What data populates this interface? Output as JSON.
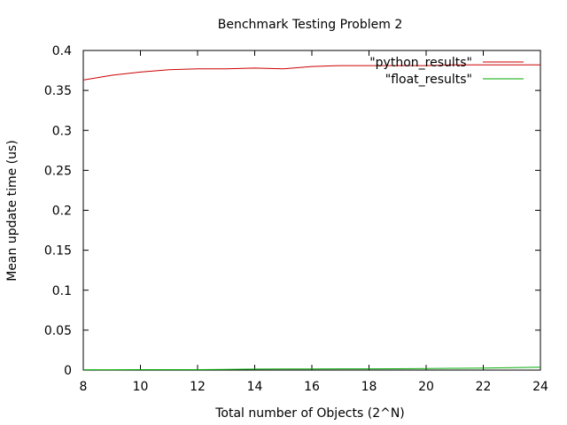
{
  "chart_data": {
    "type": "line",
    "title": "Benchmark Testing Problem 2",
    "xlabel": "Total number of Objects (2^N)",
    "ylabel": "Mean update time  (us)",
    "xlim": [
      8,
      24
    ],
    "ylim": [
      0,
      0.4
    ],
    "xticks": [
      "8",
      "10",
      "12",
      "14",
      "16",
      "18",
      "20",
      "22",
      "24"
    ],
    "yticks": [
      "0",
      "0.05",
      "0.1",
      "0.15",
      "0.2",
      "0.25",
      "0.3",
      "0.35",
      "0.4"
    ],
    "grid": false,
    "legend_position": "top-right",
    "series": [
      {
        "name": "\"python_results\"",
        "color": "#cc0000",
        "x": [
          8,
          9,
          10,
          11,
          12,
          13,
          14,
          15,
          16,
          17,
          18,
          19,
          20,
          21,
          22,
          23,
          24
        ],
        "values": [
          0.363,
          0.369,
          0.373,
          0.376,
          0.377,
          0.377,
          0.378,
          0.377,
          0.38,
          0.381,
          0.381,
          0.381,
          0.381,
          0.382,
          0.382,
          0.382,
          0.382
        ]
      },
      {
        "name": "\"float_results\"",
        "color": "#00aa00",
        "x": [
          8,
          9,
          10,
          11,
          12,
          13,
          14,
          15,
          16,
          17,
          18,
          19,
          20,
          21,
          22,
          23,
          24
        ],
        "values": [
          0.0004,
          0.0004,
          0.0005,
          0.0005,
          0.0006,
          0.0008,
          0.0012,
          0.0013,
          0.0014,
          0.0015,
          0.0016,
          0.0017,
          0.0019,
          0.0022,
          0.0026,
          0.0031,
          0.0036
        ]
      }
    ]
  }
}
